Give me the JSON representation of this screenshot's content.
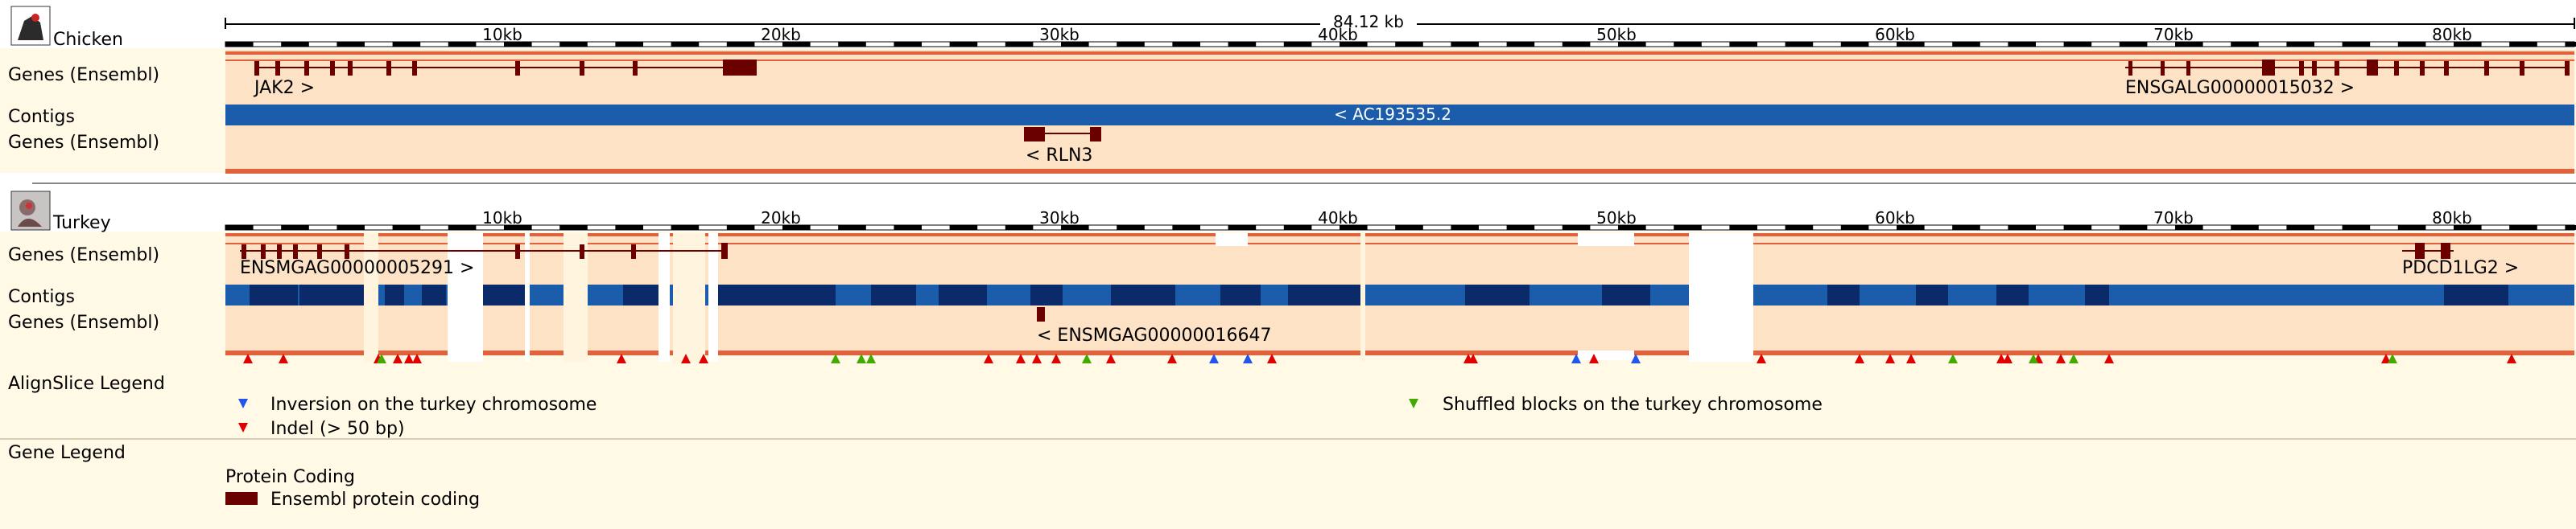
{
  "species": [
    {
      "name": "Chicken",
      "icon": "chicken-photo-icon",
      "scale": {
        "total": "84.12 kb",
        "ticks": [
          "10kb",
          "20kb",
          "30kb",
          "40kb",
          "50kb",
          "60kb",
          "70kb",
          "80kb"
        ]
      },
      "tracks": {
        "genes1": "Genes (Ensembl)",
        "contigs": "Contigs",
        "genes2": "Genes (Ensembl)"
      },
      "gene_labels": [
        "JAK2 >",
        "ENSGALG00000015032 >",
        "< RLN3"
      ],
      "contig_label": "< AC193535.2"
    },
    {
      "name": "Turkey",
      "icon": "turkey-photo-icon",
      "scale": {
        "ticks": [
          "10kb",
          "20kb",
          "30kb",
          "40kb",
          "50kb",
          "60kb",
          "70kb",
          "80kb"
        ]
      },
      "tracks": {
        "genes1": "Genes (Ensembl)",
        "contigs": "Contigs",
        "genes2": "Genes (Ensembl)"
      },
      "gene_labels": [
        "ENSMGAG00000005291 >",
        "PDCD1LG2 >",
        "< ENSMGAG00000016647"
      ]
    }
  ],
  "alignslice_legend": {
    "title": "AlignSlice Legend",
    "items": [
      {
        "marker": "blue-triangle",
        "text": "Inversion on the turkey chromosome"
      },
      {
        "marker": "red-triangle",
        "text": "Indel (> 50 bp)"
      },
      {
        "marker": "green-triangle",
        "text": "Shuffled blocks on the turkey chromosome"
      }
    ]
  },
  "gene_legend": {
    "title": "Gene Legend",
    "heading": "Protein Coding",
    "item": "Ensembl protein coding"
  },
  "colors": {
    "track_bg": "#fde2c6",
    "label_bg": "#fff9e6",
    "gene": "#6b0000",
    "contig_light": "#1b5cab",
    "contig_dark": "#0a2a6a",
    "indel": "#e00000",
    "inversion": "#2255ee",
    "shuffle": "#44aa00",
    "border": "#e0623c"
  }
}
